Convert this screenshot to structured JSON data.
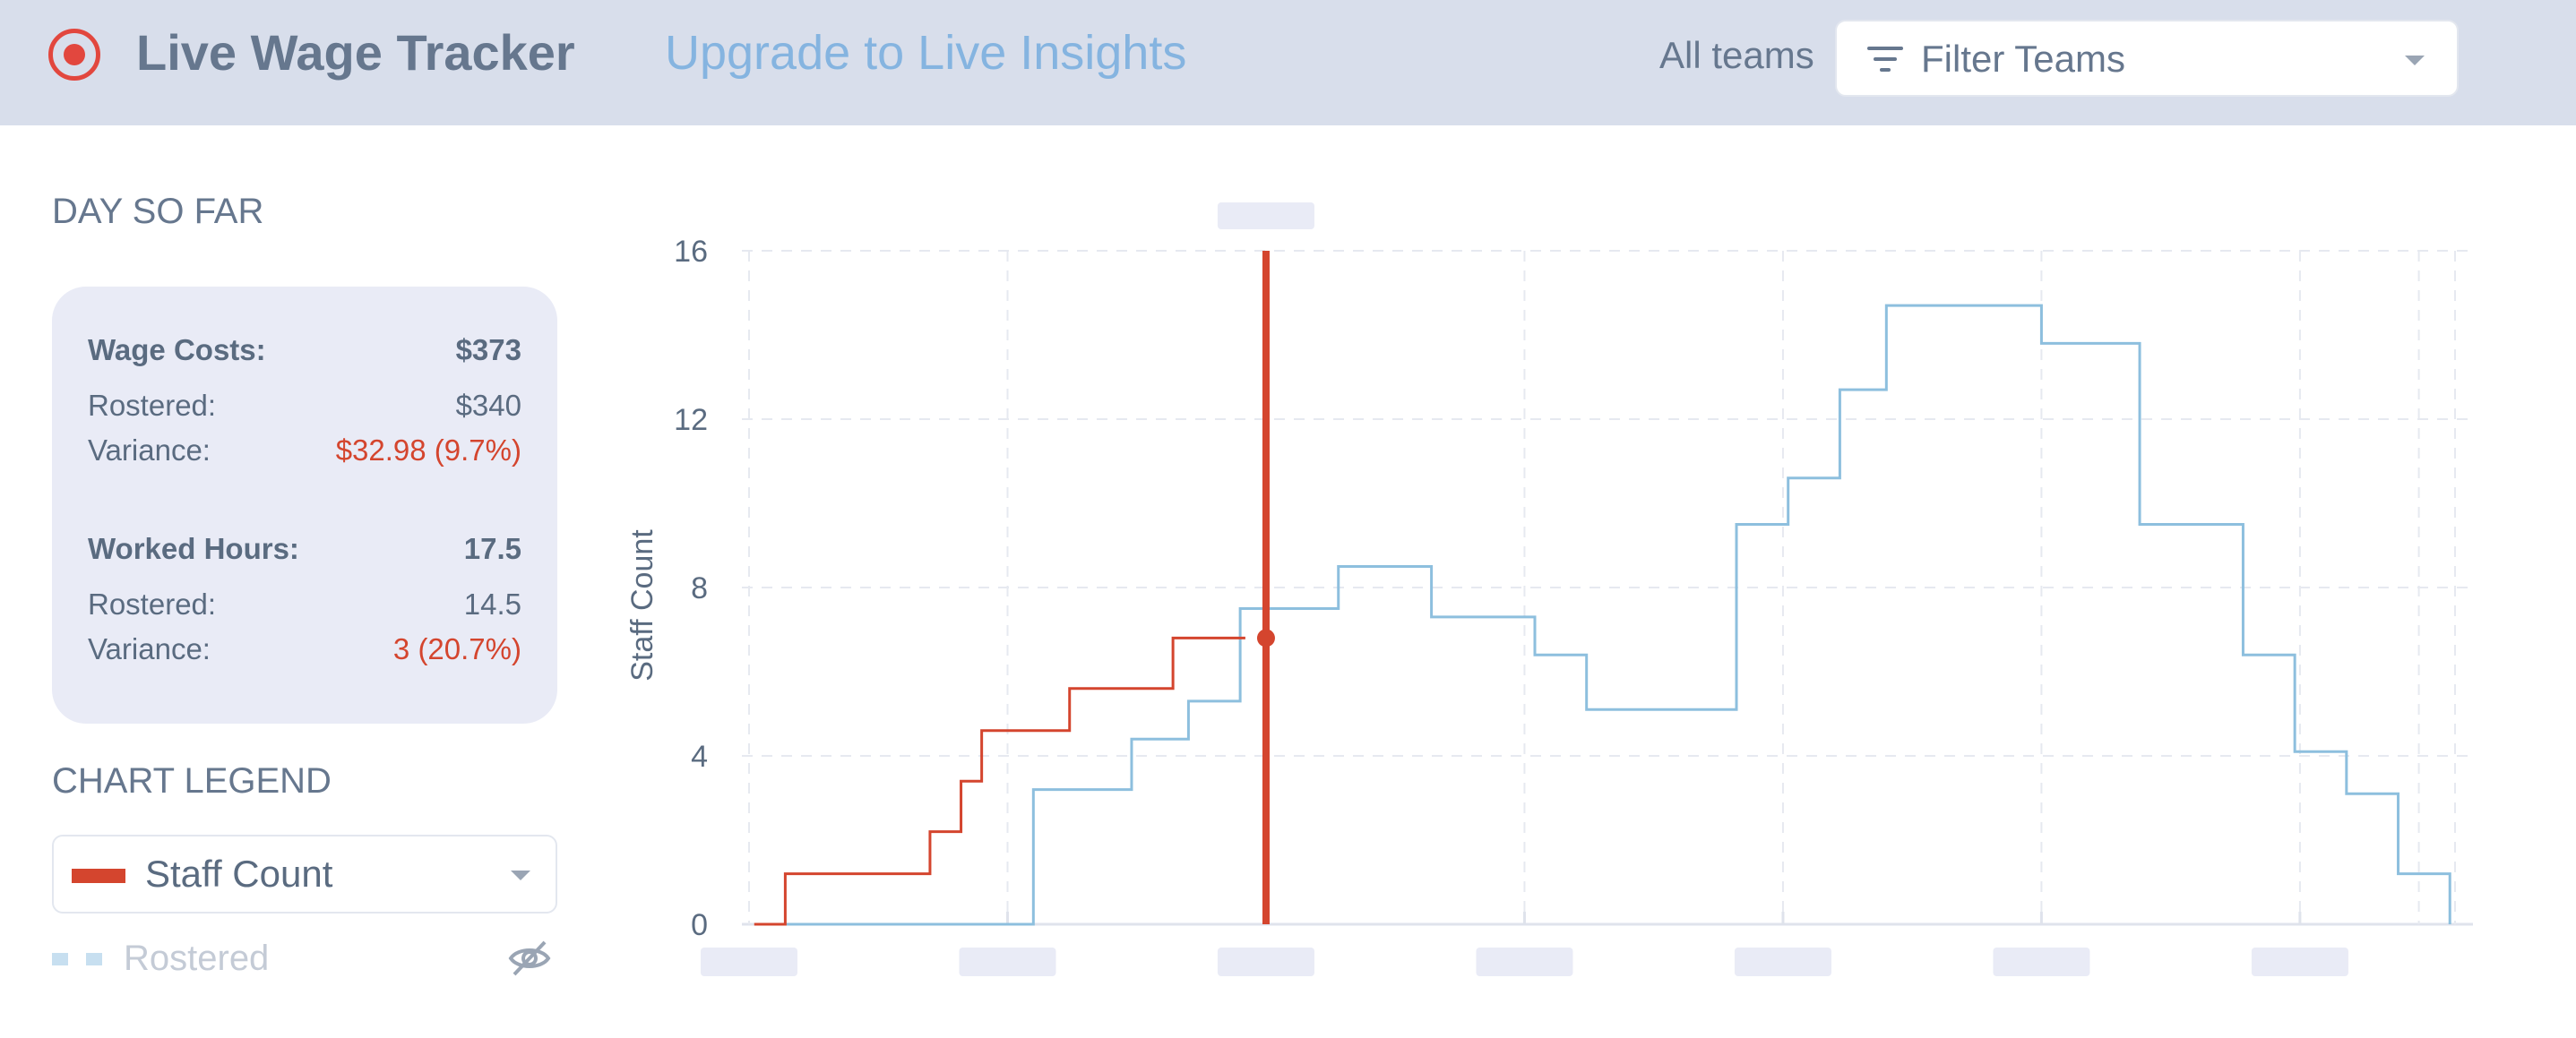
{
  "header": {
    "app_title": "Live Wage Tracker",
    "upgrade_link": "Upgrade to Live Insights",
    "teams_label": "All teams",
    "filter_placeholder": "Filter Teams"
  },
  "day_so_far": {
    "heading": "DAY SO FAR",
    "wage_costs": {
      "label": "Wage Costs:",
      "value": "$373"
    },
    "wage_rostered": {
      "label": "Rostered:",
      "value": "$340"
    },
    "wage_variance": {
      "label": "Variance:",
      "value": "$32.98 (9.7%)"
    },
    "worked_hours": {
      "label": "Worked Hours:",
      "value": "17.5"
    },
    "hours_rostered": {
      "label": "Rostered:",
      "value": "14.5"
    },
    "hours_variance": {
      "label": "Variance:",
      "value": "3 (20.7%)"
    }
  },
  "legend": {
    "heading": "CHART LEGEND",
    "selected": "Staff Count",
    "rostered": "Rostered"
  },
  "colors": {
    "staff_count": "#d4452e",
    "rostered": "#8dbfde",
    "variance_red": "#d4452e"
  },
  "chart_data": {
    "type": "line",
    "step": true,
    "ylabel": "Staff Count",
    "ylim": [
      0,
      16
    ],
    "yticks": [
      0,
      4,
      8,
      12,
      16
    ],
    "xlim": [
      0,
      33
    ],
    "x_ticks": [
      5,
      10,
      15,
      20,
      25,
      30
    ],
    "current_marker": {
      "x": 10,
      "y": 6.8
    },
    "grid": true,
    "series": [
      {
        "name": "Staff Count",
        "points": [
          [
            0.1,
            0
          ],
          [
            0.7,
            1.2
          ],
          [
            3.5,
            2.2
          ],
          [
            4.1,
            3.4
          ],
          [
            4.5,
            4.6
          ],
          [
            6.2,
            5.6
          ],
          [
            8.2,
            6.8
          ],
          [
            9.6,
            6.8
          ]
        ]
      },
      {
        "name": "Rostered",
        "points": [
          [
            0.7,
            0
          ],
          [
            5.5,
            3.2
          ],
          [
            7.4,
            4.4
          ],
          [
            8.5,
            5.3
          ],
          [
            9.5,
            7.5
          ],
          [
            11.4,
            8.5
          ],
          [
            13.2,
            7.3
          ],
          [
            15.2,
            6.4
          ],
          [
            16.2,
            5.1
          ],
          [
            19.1,
            9.5
          ],
          [
            20.1,
            10.6
          ],
          [
            21.1,
            12.7
          ],
          [
            22.0,
            14.7
          ],
          [
            25.0,
            13.8
          ],
          [
            26.9,
            9.5
          ],
          [
            28.9,
            6.4
          ],
          [
            29.9,
            4.1
          ],
          [
            30.9,
            3.1
          ],
          [
            31.9,
            1.2
          ],
          [
            32.9,
            0
          ]
        ]
      }
    ]
  }
}
